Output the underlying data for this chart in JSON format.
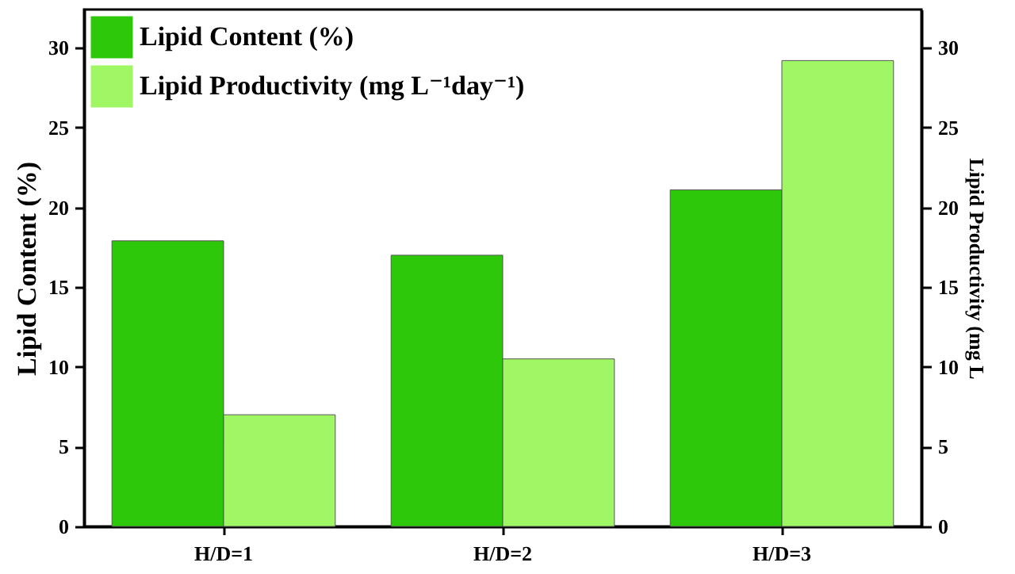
{
  "chart_data": {
    "type": "bar",
    "ylabel": "Lipid Content (%)",
    "y2label": "Lipid Productivity (mg L",
    "categories": [
      "H/D=1",
      "H/D=2",
      "H/D=3"
    ],
    "series": [
      {
        "name": "Lipid Content (%)",
        "color": "#2dc80a",
        "values": [
          17.9,
          17.0,
          21.1
        ]
      },
      {
        "name": "Lipid Productivity (mg L⁻¹day⁻¹)",
        "color": "#a0f764",
        "values": [
          7.0,
          10.5,
          29.2
        ],
        "axis": "y2"
      }
    ],
    "ylim": [
      0,
      32.4
    ],
    "yticks": [
      0,
      5,
      10,
      15,
      20,
      25,
      30
    ],
    "y2lim": [
      0,
      32.4
    ],
    "y2ticks": [
      0,
      5,
      10,
      15,
      20,
      25,
      30
    ],
    "legend": "top left"
  }
}
